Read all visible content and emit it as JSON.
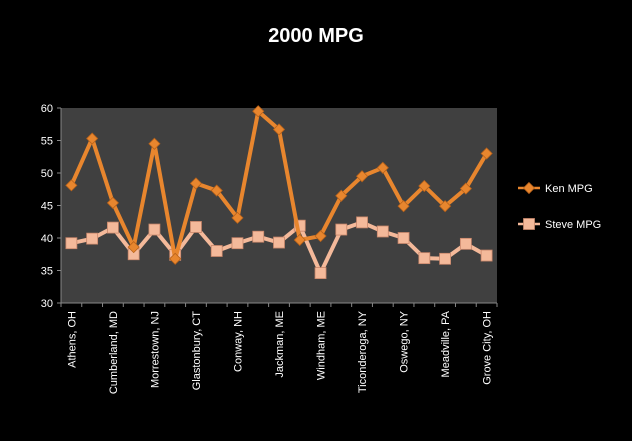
{
  "chart_data": {
    "type": "line",
    "title": "2000 MPG",
    "xlabel": "",
    "ylabel": "",
    "ylim": [
      30,
      60
    ],
    "yticks": [
      "30",
      "35",
      "40",
      "45",
      "50",
      "55",
      "60"
    ],
    "categories": [
      "Athens, OH",
      "",
      "Cumberland, MD",
      "",
      "Morrestown, NJ",
      "",
      "Glastonbury, CT",
      "",
      "Conway, NH",
      "",
      "Jackman, ME",
      "",
      "Windham, ME",
      "",
      "Ticonderoga, NY",
      "",
      "Oswego, NY",
      "",
      "Meadville, PA",
      "",
      "Grove City, OH"
    ],
    "x_labels": [
      "Athens, OH",
      "Cumberland, MD",
      "Morrestown, NJ",
      "Glastonbury, CT",
      "Conway, NH",
      "Jackman, ME",
      "Windham, ME",
      "Ticonderoga, NY",
      "Oswego, NY",
      "Meadville, PA",
      "Grove City, OH"
    ],
    "grid": false,
    "legend_position": "right",
    "series": [
      {
        "name": "Ken MPG",
        "color": "#E8862E",
        "marker": "diamond",
        "values": [
          48.1,
          55.3,
          45.4,
          38.6,
          54.5,
          36.8,
          48.4,
          47.3,
          43.1,
          59.5,
          56.7,
          39.7,
          40.3,
          46.5,
          49.5,
          50.8,
          44.9,
          48.0,
          44.9,
          47.6,
          53.0
        ]
      },
      {
        "name": "Steve MPG",
        "color": "#F4B99A",
        "marker": "square",
        "values": [
          39.2,
          39.9,
          41.6,
          37.5,
          41.3,
          37.4,
          41.7,
          38.0,
          39.2,
          40.2,
          39.3,
          41.9,
          34.6,
          41.3,
          42.4,
          41.0,
          40.0,
          36.9,
          36.8,
          39.1,
          37.3
        ]
      }
    ]
  }
}
